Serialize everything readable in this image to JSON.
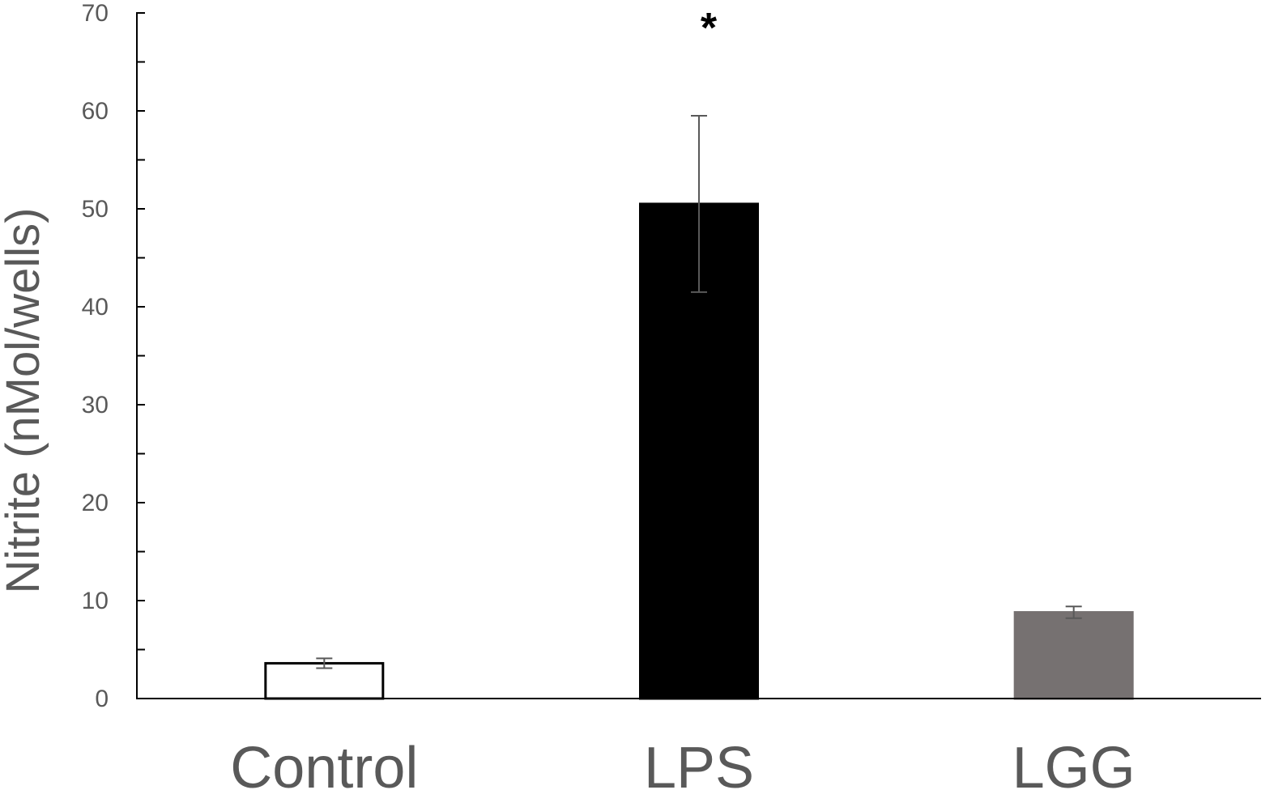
{
  "chart_data": {
    "type": "bar",
    "title": "",
    "xlabel": "",
    "ylabel": "Nitrite (nMol/wells)",
    "ylim": [
      0,
      70
    ],
    "yticks": [
      0,
      10,
      20,
      30,
      40,
      50,
      60,
      70
    ],
    "minor_tick_step": 5,
    "grid": false,
    "categories": [
      "Control",
      "LPS",
      "LGG"
    ],
    "values": [
      3.6,
      50.5,
      8.8
    ],
    "errors": [
      0.5,
      9.0,
      0.6
    ],
    "bar_fill": [
      "#ffffff",
      "#000000",
      "#767171"
    ],
    "bar_stroke": [
      "#000000",
      "#000000",
      "#767171"
    ],
    "annotations": [
      {
        "category": "LPS",
        "text": "*"
      }
    ]
  }
}
